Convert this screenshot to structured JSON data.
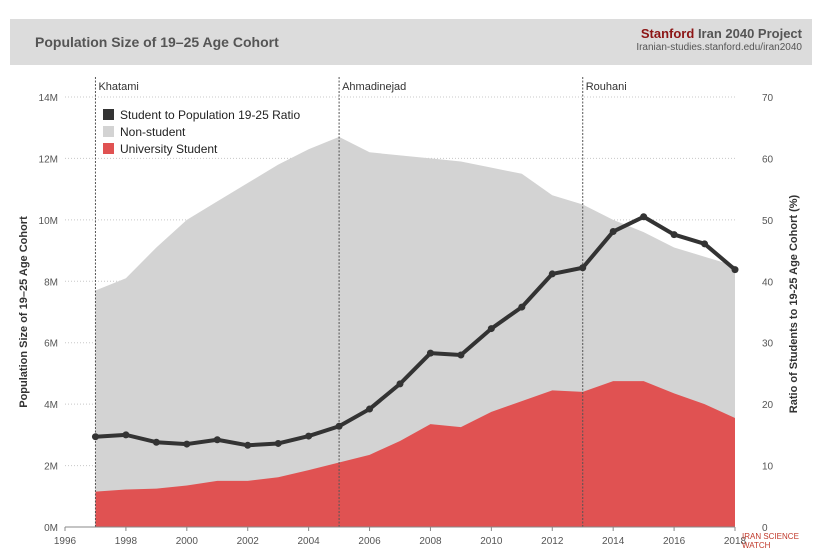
{
  "header": {
    "title": "Population Size of 19–25 Age Cohort",
    "brand_stanford": "Stanford",
    "brand_rest": "Iran 2040 Project",
    "brand_url": "Iranian-studies.stanford.edu/iran2040"
  },
  "watermark": "IRAN SCIENCE WATCH",
  "chart_data": {
    "type": "area",
    "title": "Population Size of 19–25 Age Cohort",
    "ylabel": "Population Size of 19–25 Age Cohort",
    "ylabel_right": "Ratio of Students to 19-25 Age Cohort (%)",
    "xlim": [
      1996,
      2018
    ],
    "ylim": [
      0,
      14
    ],
    "ylim_right": [
      0,
      70
    ],
    "xticks": [
      "1996",
      "1998",
      "2000",
      "2002",
      "2004",
      "2006",
      "2008",
      "2010",
      "2012",
      "2014",
      "2016",
      "2018"
    ],
    "yticks": [
      "0M",
      "2M",
      "4M",
      "6M",
      "8M",
      "10M",
      "12M",
      "14M"
    ],
    "yticks_right": [
      "0",
      "10",
      "20",
      "30",
      "40",
      "50",
      "60",
      "70"
    ],
    "legend_position": "top-left",
    "legend": [
      {
        "label": "Student to Population 19-25 Ratio",
        "color": "#333333"
      },
      {
        "label": "Non-student",
        "color": "#d3d3d3"
      },
      {
        "label": "University Student",
        "color": "#e05252"
      }
    ],
    "periods": [
      {
        "label": "Khatami",
        "x": 1997
      },
      {
        "label": "Ahmadinejad",
        "x": 2005
      },
      {
        "label": "Rouhani",
        "x": 2013
      }
    ],
    "x": [
      1997,
      1998,
      1999,
      2000,
      2001,
      2002,
      2003,
      2004,
      2005,
      2006,
      2007,
      2008,
      2009,
      2010,
      2011,
      2012,
      2013,
      2014,
      2015,
      2016,
      2017,
      2018
    ],
    "series": [
      {
        "name": "Non-student",
        "color": "#d3d3d3",
        "axis": "left",
        "values_total": [
          7.7,
          8.1,
          9.1,
          10.0,
          10.6,
          11.2,
          11.8,
          12.3,
          12.7,
          12.2,
          12.1,
          12.0,
          11.9,
          11.7,
          11.5,
          10.8,
          10.5,
          10.0,
          9.6,
          9.1,
          8.8,
          8.5
        ]
      },
      {
        "name": "University Student",
        "color": "#e05252",
        "axis": "left",
        "values": [
          1.15,
          1.22,
          1.25,
          1.35,
          1.5,
          1.5,
          1.62,
          1.85,
          2.1,
          2.35,
          2.8,
          3.35,
          3.25,
          3.75,
          4.1,
          4.45,
          4.4,
          4.75,
          4.75,
          4.35,
          4.0,
          3.55
        ]
      },
      {
        "name": "Student to Population 19-25 Ratio",
        "color": "#333333",
        "axis": "right",
        "values": [
          14.7,
          15.0,
          13.8,
          13.5,
          14.2,
          13.3,
          13.6,
          14.8,
          16.4,
          19.2,
          23.3,
          28.3,
          28.0,
          32.3,
          35.8,
          41.2,
          42.2,
          48.1,
          50.5,
          47.6,
          46.1,
          41.9
        ]
      }
    ]
  }
}
